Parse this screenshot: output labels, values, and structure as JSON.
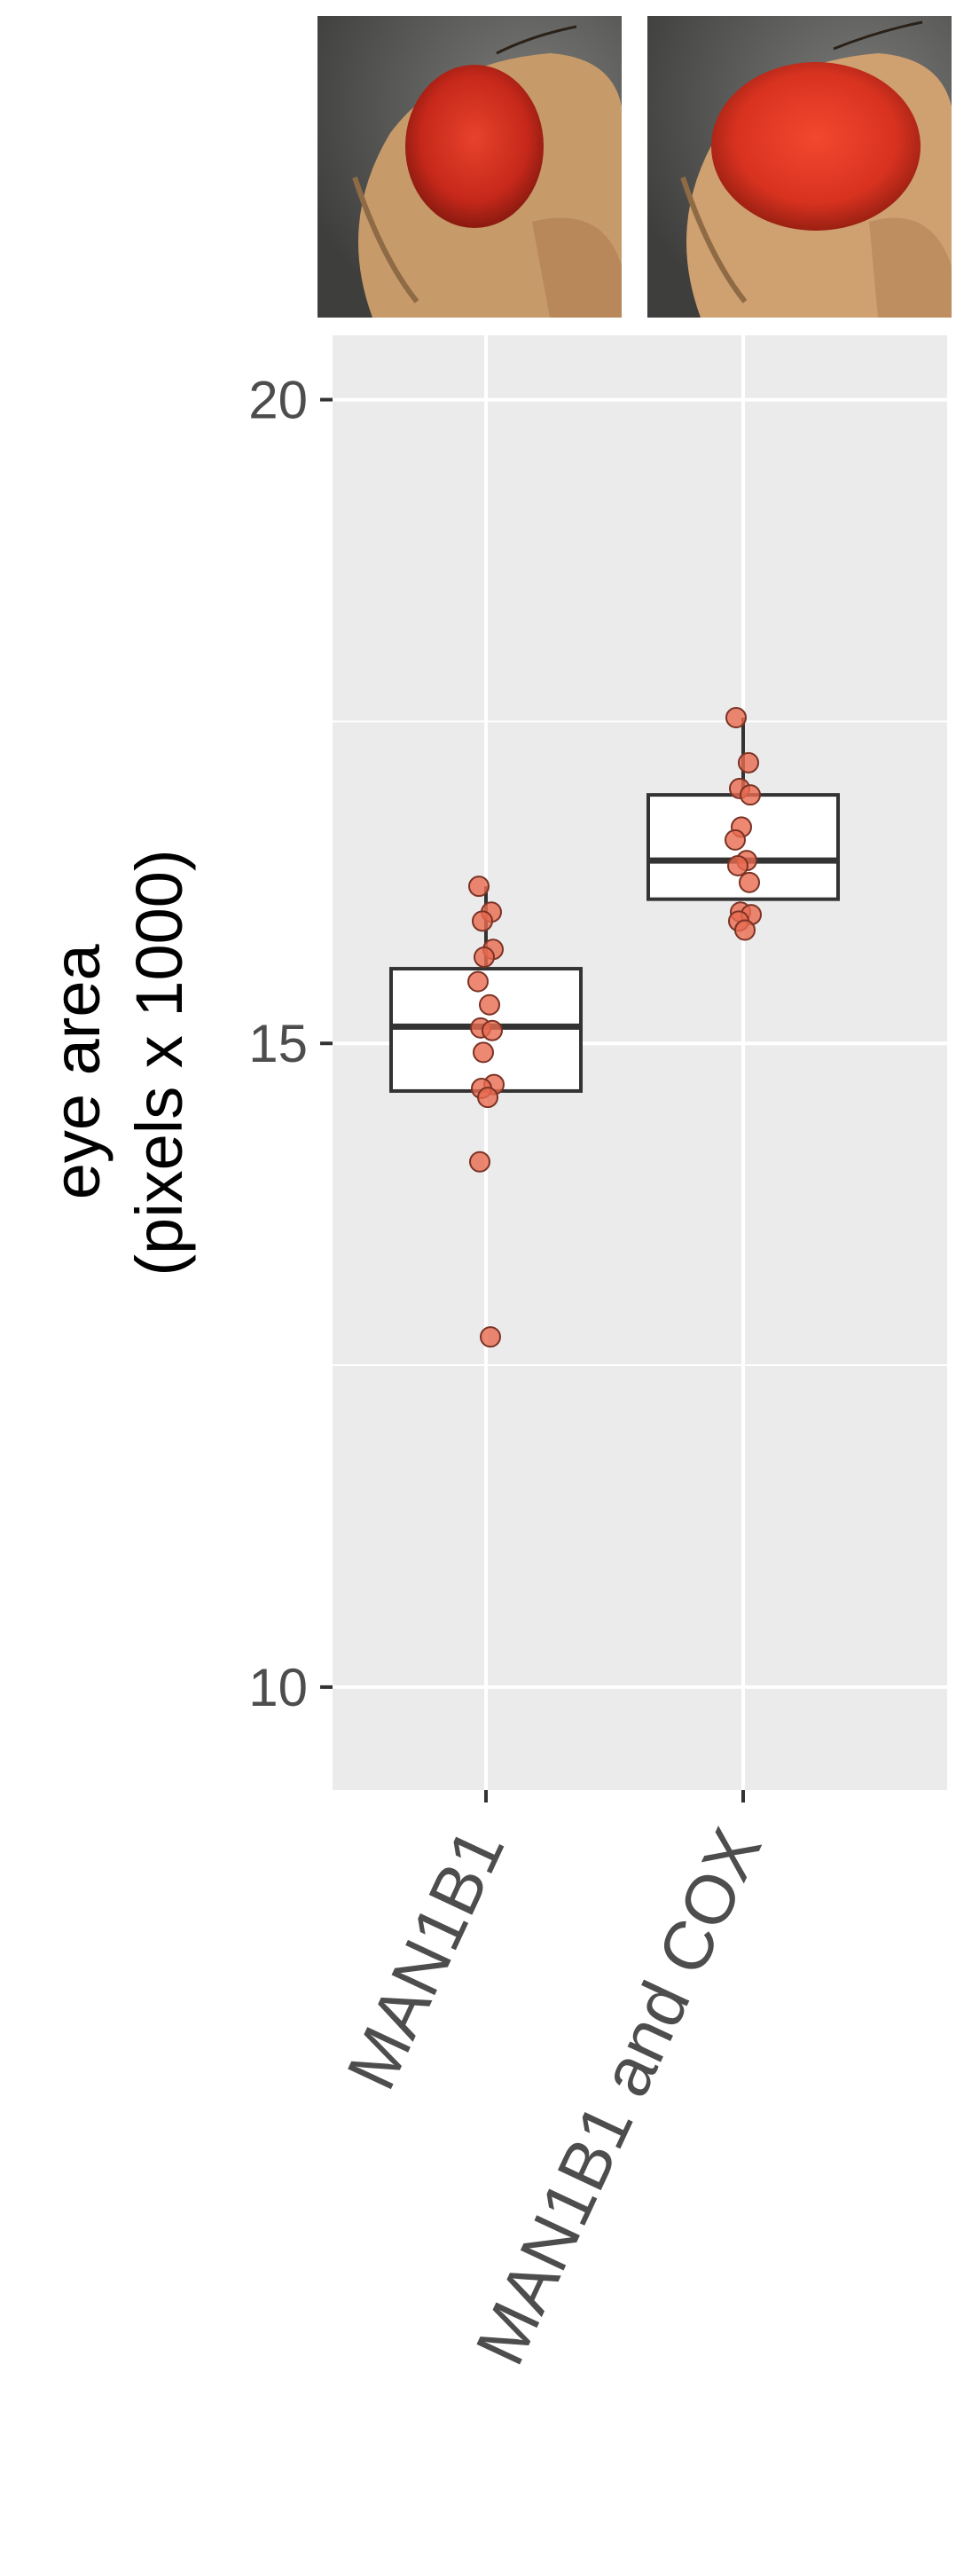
{
  "chart_data": {
    "type": "box",
    "title": "",
    "ylabel_lines": [
      "eye area",
      "(pixels x 1000)"
    ],
    "xlabel": "",
    "ylim": [
      9.2,
      20.5
    ],
    "yticks": [
      "10",
      "15",
      "20"
    ],
    "ytick_values": [
      10,
      15,
      20
    ],
    "grid": true,
    "categories": [
      "MAN1B1",
      "MAN1B1 and COX"
    ],
    "series": [
      {
        "category": "MAN1B1",
        "box": {
          "q1": 14.63,
          "median": 15.13,
          "q3": 15.58,
          "whisker_low": 14.63,
          "whisker_high": 16.22
        },
        "points": [
          16.22,
          16.02,
          15.95,
          15.73,
          15.67,
          15.48,
          15.3,
          15.12,
          15.1,
          14.93,
          14.68,
          14.65,
          14.58,
          14.08,
          12.72
        ]
      },
      {
        "category": "MAN1B1 and COX",
        "box": {
          "q1": 16.12,
          "median": 16.42,
          "q3": 16.93,
          "whisker_low": 16.12,
          "whisker_high": 17.53
        },
        "points": [
          17.53,
          17.18,
          16.98,
          16.93,
          16.68,
          16.58,
          16.42,
          16.38,
          16.25,
          16.02,
          16.0,
          15.95,
          15.88
        ]
      }
    ],
    "colors": {
      "panel": "#ebebeb",
      "grid": "#ffffff",
      "box_line": "#333333",
      "box_fill": "#ffffff",
      "point_fill": "#e86a50",
      "point_stroke": "#7a3324"
    }
  },
  "images": [
    {
      "name": "fly-eye-photo-man1b1",
      "depicts": "fly-eye"
    },
    {
      "name": "fly-eye-photo-man1b1-and-cox",
      "depicts": "fly-eye"
    }
  ]
}
